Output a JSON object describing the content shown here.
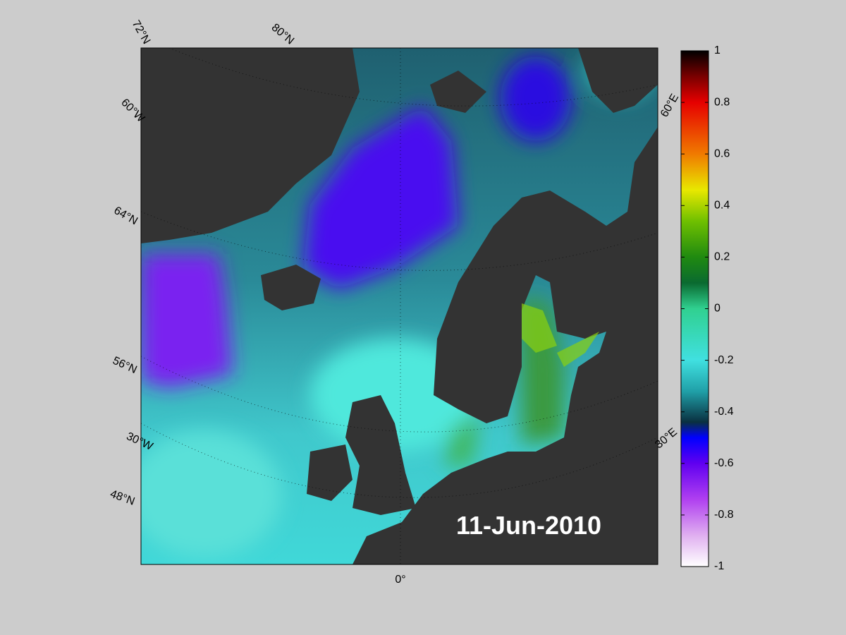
{
  "map": {
    "date": "11-Jun-2010",
    "graticule_labels": [
      "72°N",
      "80°N",
      "60°W",
      "64°N",
      "56°N",
      "30°W",
      "48°N",
      "0°",
      "60°E",
      "30°E"
    ]
  },
  "colorbar": {
    "lim": [
      -1,
      1
    ],
    "ticks": [
      1,
      0.8,
      0.6,
      0.4,
      0.2,
      0,
      -0.2,
      -0.4,
      -0.6,
      -0.8,
      -1
    ]
  }
}
